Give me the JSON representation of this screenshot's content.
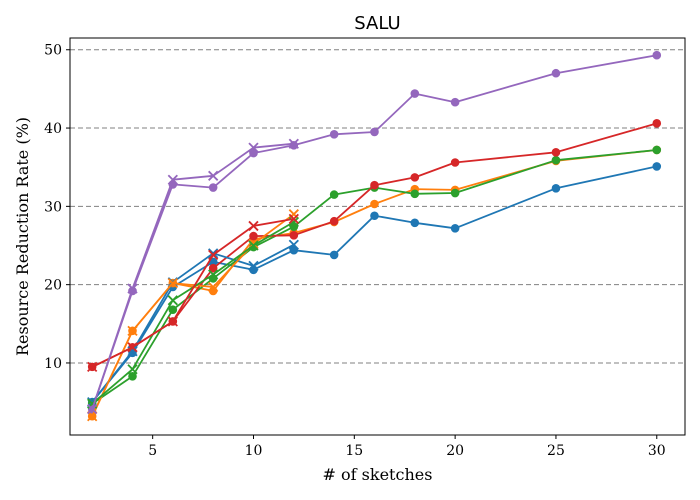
{
  "colors": {
    "blue": "#1f77b4",
    "orange": "#ff7f0e",
    "green": "#2ca02c",
    "red": "#d62728",
    "purple": "#9467bd",
    "grid": "#808080"
  },
  "chart_data": {
    "type": "line",
    "title": "SALU",
    "xlabel": "# of sketches",
    "ylabel": "Resource Reduction Rate (%)",
    "xlim": [
      0.9,
      31.4
    ],
    "ylim": [
      0.8,
      51.5
    ],
    "xticks": [
      5,
      10,
      15,
      20,
      25,
      30
    ],
    "yticks": [
      10,
      20,
      30,
      40,
      50
    ],
    "grid": "y-dashed",
    "series": [
      {
        "color": "blue",
        "marker": "o",
        "x": [
          2,
          4,
          6,
          8,
          10,
          12,
          14,
          16,
          18,
          20,
          25,
          30
        ],
        "y": [
          5.0,
          11.3,
          19.7,
          22.9,
          21.9,
          24.4,
          23.8,
          28.8,
          27.9,
          27.2,
          32.3,
          35.1
        ]
      },
      {
        "color": "orange",
        "marker": "o",
        "x": [
          2,
          4,
          6,
          8,
          10,
          12,
          14,
          16,
          18,
          20,
          25,
          30
        ],
        "y": [
          3.2,
          14.1,
          20.2,
          19.2,
          25.8,
          26.6,
          28.0,
          30.3,
          32.2,
          32.1,
          35.8,
          37.2
        ]
      },
      {
        "color": "green",
        "marker": "o",
        "x": [
          2,
          4,
          6,
          8,
          10,
          12,
          14,
          16,
          18,
          20,
          25,
          30
        ],
        "y": [
          4.8,
          8.3,
          16.8,
          20.8,
          24.8,
          27.4,
          31.5,
          32.4,
          31.6,
          31.7,
          35.9,
          37.2
        ]
      },
      {
        "color": "red",
        "marker": "o",
        "x": [
          2,
          4,
          6,
          8,
          10,
          12,
          14,
          16,
          18,
          20,
          25,
          30
        ],
        "y": [
          9.5,
          12.0,
          15.3,
          22.1,
          26.2,
          26.3,
          28.1,
          32.7,
          33.7,
          35.6,
          36.9,
          40.6
        ]
      },
      {
        "color": "purple",
        "marker": "o",
        "x": [
          2,
          4,
          6,
          8,
          10,
          12,
          14,
          16,
          18,
          20,
          25,
          30
        ],
        "y": [
          4.1,
          19.2,
          32.8,
          32.4,
          36.8,
          37.8,
          39.2,
          39.5,
          44.4,
          43.3,
          47.0,
          49.3
        ]
      },
      {
        "color": "blue",
        "marker": "x",
        "x": [
          2,
          4,
          6,
          8,
          10,
          12
        ],
        "y": [
          5.0,
          11.5,
          20.3,
          24.0,
          22.4,
          25.1
        ]
      },
      {
        "color": "orange",
        "marker": "x",
        "x": [
          2,
          4,
          6,
          8,
          10,
          12
        ],
        "y": [
          3.2,
          14.1,
          20.2,
          19.7,
          25.2,
          29.0
        ]
      },
      {
        "color": "green",
        "marker": "x",
        "x": [
          2,
          4,
          6,
          8,
          10,
          12
        ],
        "y": [
          4.8,
          9.2,
          18.0,
          21.3,
          25.0,
          28.0
        ]
      },
      {
        "color": "red",
        "marker": "x",
        "x": [
          2,
          4,
          6,
          8,
          10,
          12
        ],
        "y": [
          9.5,
          12.0,
          15.3,
          23.8,
          27.5,
          28.4
        ]
      },
      {
        "color": "purple",
        "marker": "x",
        "x": [
          2,
          4,
          6,
          8,
          10,
          12
        ],
        "y": [
          4.1,
          19.5,
          33.4,
          33.9,
          37.5,
          38.0
        ]
      }
    ]
  }
}
